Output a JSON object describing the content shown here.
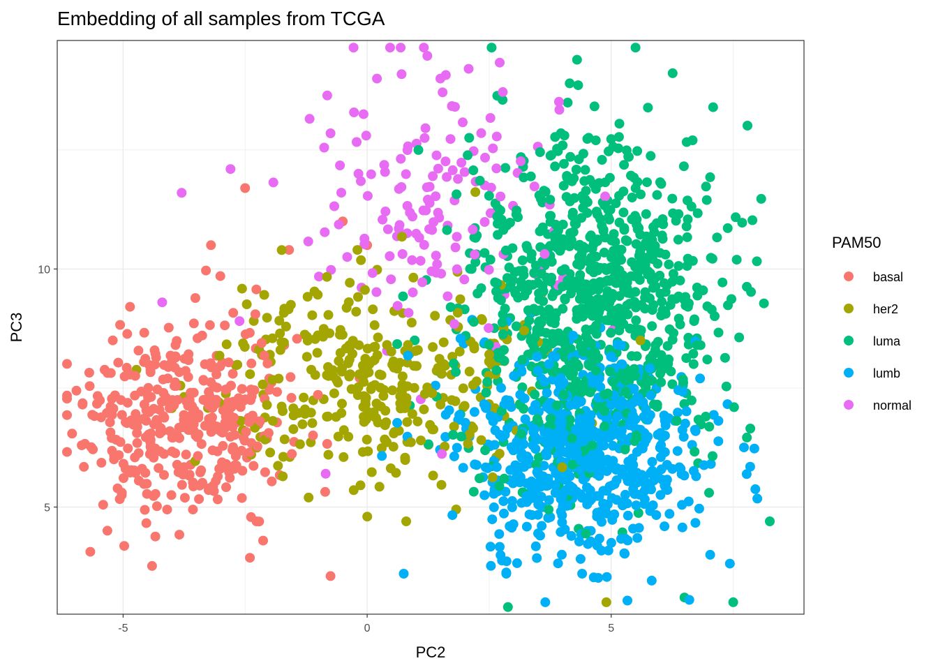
{
  "chart_data": {
    "type": "scatter",
    "title": "Embedding of all samples from TCGA",
    "xlabel": "PC2",
    "ylabel": "PC3",
    "xlim": [
      -6.35,
      8.95
    ],
    "ylim": [
      2.75,
      14.8
    ],
    "x_ticks": [
      -5,
      0,
      5
    ],
    "y_ticks": [
      5,
      10
    ],
    "grid": true,
    "legend": {
      "title": "PAM50",
      "placement": "right"
    },
    "series": [
      {
        "name": "basal",
        "color": "#F8766D",
        "center": [
          -3.7,
          6.9
        ],
        "spread": [
          1.1,
          1.05
        ],
        "count": 390,
        "extra_points": [
          [
            -0.75,
            3.55
          ],
          [
            -2.5,
            11.7
          ],
          [
            -1.6,
            10.4
          ],
          [
            -0.5,
            11.0
          ],
          [
            0.0,
            10.5
          ],
          [
            -3.2,
            10.5
          ]
        ]
      },
      {
        "name": "her2",
        "color": "#A3A500",
        "center": [
          0.2,
          7.7
        ],
        "spread": [
          1.5,
          1.05
        ],
        "count": 330,
        "extra_points": [
          [
            4.9,
            3.0
          ],
          [
            -1.2,
            5.2
          ],
          [
            0.8,
            4.7
          ],
          [
            5.6,
            8.5
          ],
          [
            -0.2,
            10.4
          ]
        ]
      },
      {
        "name": "luma",
        "color": "#00BF7D",
        "center": [
          4.6,
          9.3
        ],
        "spread": [
          1.35,
          1.75
        ],
        "count": 880,
        "extra_points": [
          [
            7.5,
            3.0
          ],
          [
            8.25,
            4.7
          ],
          [
            7.85,
            6.65
          ],
          [
            4.15,
            13.9
          ],
          [
            1.05,
            12.5
          ],
          [
            6.5,
            3.1
          ]
        ]
      },
      {
        "name": "lumb",
        "color": "#00B0F6",
        "center": [
          4.5,
          6.2
        ],
        "spread": [
          1.25,
          1.05
        ],
        "count": 680,
        "extra_points": [
          [
            3.65,
            3.0
          ],
          [
            0.75,
            3.6
          ],
          [
            2.85,
            3.6
          ],
          [
            6.6,
            3.05
          ]
        ]
      },
      {
        "name": "normal",
        "color": "#E76BF3",
        "center": [
          1.4,
          11.3
        ],
        "spread": [
          1.2,
          1.45
        ],
        "count": 150,
        "extra_points": [
          [
            0.2,
            14.0
          ],
          [
            1.5,
            14.0
          ],
          [
            -0.75,
            12.85
          ],
          [
            -2.8,
            12.1
          ],
          [
            -3.8,
            11.6
          ],
          [
            -0.85,
            5.7
          ],
          [
            -4.2,
            9.3
          ]
        ]
      }
    ]
  }
}
